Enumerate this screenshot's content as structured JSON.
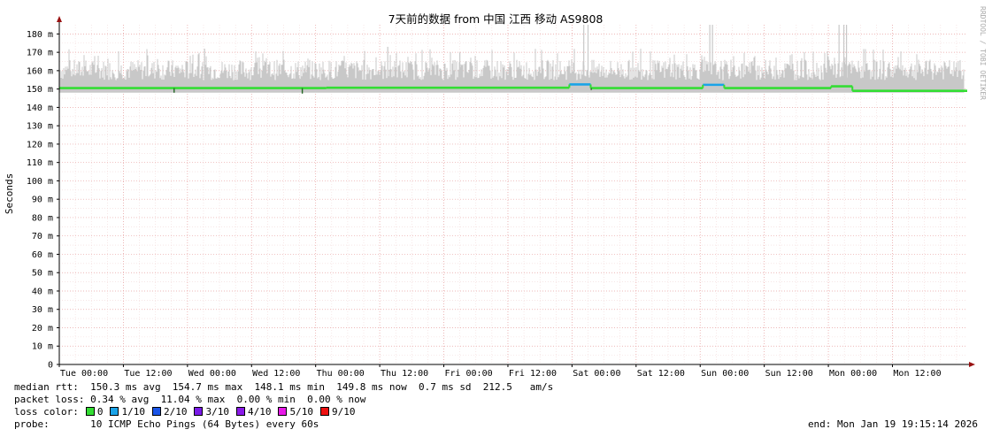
{
  "chart_data": {
    "type": "line",
    "title": "7天前的数据 from 中国 江西 移动 AS9808",
    "ylabel": "Seconds",
    "watermark": "RRDTOOL / TOBI OETIKER",
    "ylim": [
      0,
      0.185
    ],
    "y_ticks": [
      {
        "value": 0,
        "label": "0"
      },
      {
        "value": 0.01,
        "label": "10 m"
      },
      {
        "value": 0.02,
        "label": "20 m"
      },
      {
        "value": 0.03,
        "label": "30 m"
      },
      {
        "value": 0.04,
        "label": "40 m"
      },
      {
        "value": 0.05,
        "label": "50 m"
      },
      {
        "value": 0.06,
        "label": "60 m"
      },
      {
        "value": 0.07,
        "label": "70 m"
      },
      {
        "value": 0.08,
        "label": "80 m"
      },
      {
        "value": 0.09,
        "label": "90 m"
      },
      {
        "value": 0.1,
        "label": "100 m"
      },
      {
        "value": 0.11,
        "label": "110 m"
      },
      {
        "value": 0.12,
        "label": "120 m"
      },
      {
        "value": 0.13,
        "label": "130 m"
      },
      {
        "value": 0.14,
        "label": "140 m"
      },
      {
        "value": 0.15,
        "label": "150 m"
      },
      {
        "value": 0.16,
        "label": "160 m"
      },
      {
        "value": 0.17,
        "label": "170 m"
      },
      {
        "value": 0.18,
        "label": "180 m"
      }
    ],
    "x_range_hours": [
      0,
      170
    ],
    "x_ticks": [
      {
        "hour": 0,
        "label": "Tue 00:00"
      },
      {
        "hour": 12,
        "label": "Tue 12:00"
      },
      {
        "hour": 24,
        "label": "Wed 00:00"
      },
      {
        "hour": 36,
        "label": "Wed 12:00"
      },
      {
        "hour": 48,
        "label": "Thu 00:00"
      },
      {
        "hour": 60,
        "label": "Thu 12:00"
      },
      {
        "hour": 72,
        "label": "Fri 00:00"
      },
      {
        "hour": 84,
        "label": "Fri 12:00"
      },
      {
        "hour": 96,
        "label": "Sat 00:00"
      },
      {
        "hour": 108,
        "label": "Sat 12:00"
      },
      {
        "hour": 120,
        "label": "Sun 00:00"
      },
      {
        "hour": 132,
        "label": "Sun 12:00"
      },
      {
        "hour": 144,
        "label": "Mon 00:00"
      },
      {
        "hour": 156,
        "label": "Mon 12:00"
      }
    ],
    "median_segments": [
      {
        "from_hour": 0,
        "to_hour": 50,
        "value": 0.1505
      },
      {
        "from_hour": 50,
        "to_hour": 95.5,
        "value": 0.1507
      },
      {
        "from_hour": 95.5,
        "to_hour": 99.5,
        "value": 0.1525
      },
      {
        "from_hour": 99.5,
        "to_hour": 120.5,
        "value": 0.1505
      },
      {
        "from_hour": 120.5,
        "to_hour": 124.5,
        "value": 0.1523
      },
      {
        "from_hour": 124.5,
        "to_hour": 144.5,
        "value": 0.1505
      },
      {
        "from_hour": 144.5,
        "to_hour": 148.5,
        "value": 0.1515
      },
      {
        "from_hour": 148.5,
        "to_hour": 170,
        "value": 0.149
      }
    ],
    "spikes": [
      {
        "hour": 98.2,
        "value": 0.185
      },
      {
        "hour": 99.0,
        "value": 0.185
      },
      {
        "hour": 121.8,
        "value": 0.185
      },
      {
        "hour": 122.3,
        "value": 0.185
      },
      {
        "hour": 146.0,
        "value": 0.185
      },
      {
        "hour": 146.9,
        "value": 0.185
      },
      {
        "hour": 147.4,
        "value": 0.185
      },
      {
        "hour": 27.2,
        "value": 0.172
      },
      {
        "hour": 61.5,
        "value": 0.173
      },
      {
        "hour": 75.0,
        "value": 0.17
      }
    ],
    "dips": [
      {
        "hour": 21.5,
        "value": 0.148
      },
      {
        "hour": 45.5,
        "value": 0.1475
      },
      {
        "hour": 99.6,
        "value": 0.1495
      }
    ],
    "smoke_band": [
      0.15,
      0.166
    ],
    "colors": {
      "smoke": "#c8c8c8",
      "median": "#33dd33",
      "median_alt": "#1aa3e8",
      "grid": "#e8a0a0",
      "axis": "#000000",
      "arrow": "#991111"
    }
  },
  "stats": {
    "median_rtt": "median rtt:  150.3 ms avg  154.7 ms max  148.1 ms min  149.8 ms now  0.7 ms sd  212.5   am/s",
    "packet_loss": "packet loss: 0.34 % avg  11.04 % max  0.00 % min  0.00 % now",
    "loss_color_label": "loss color:",
    "probe": "probe:       10 ICMP Echo Pings (64 Bytes) every 60s",
    "end": "end: Mon Jan 19 19:15:14 2026"
  },
  "loss_legend": [
    {
      "label": "0",
      "color": "#33dd33"
    },
    {
      "label": "1/10",
      "color": "#1aa3e8"
    },
    {
      "label": "2/10",
      "color": "#1a55e8"
    },
    {
      "label": "3/10",
      "color": "#7a1ae8"
    },
    {
      "label": "4/10",
      "color": "#8a1ae8"
    },
    {
      "label": "5/10",
      "color": "#e81ae8"
    },
    {
      "label": "9/10",
      "color": "#ee1111"
    }
  ]
}
